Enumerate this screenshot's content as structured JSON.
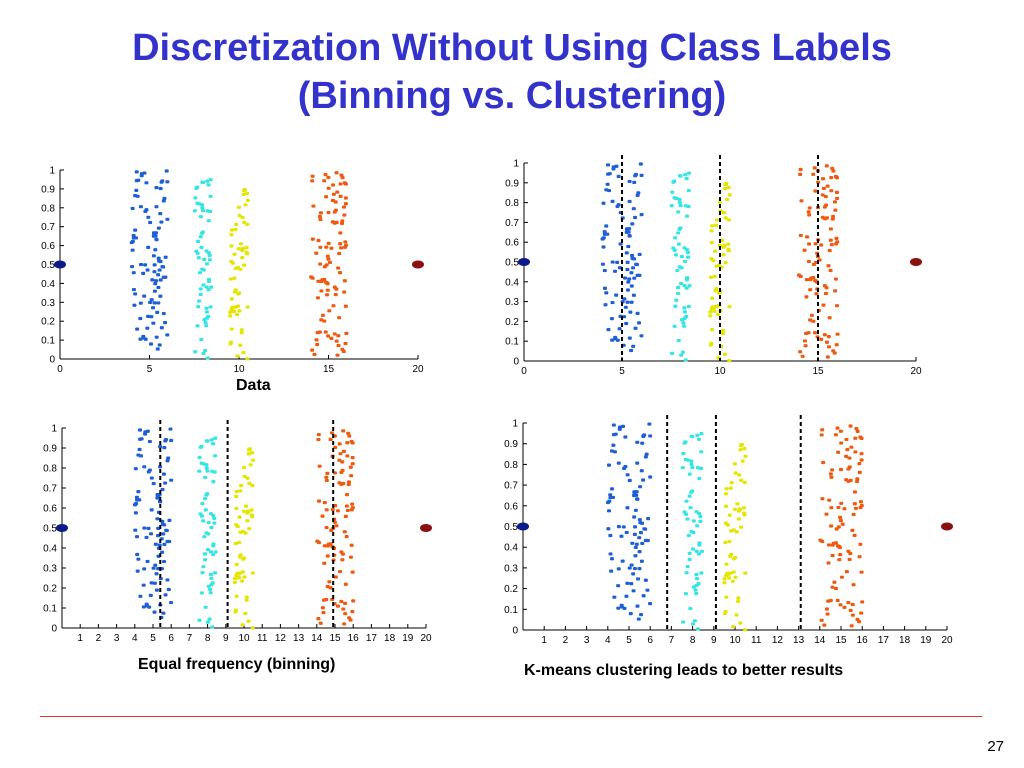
{
  "slide": {
    "title_line1": "Discretization Without Using Class Labels",
    "title_line2": "(Binning vs. Clustering)",
    "page_number": "27",
    "colors": {
      "title": "#3333cc",
      "rule": "#e03030",
      "outlier_left": "#0a1a8a",
      "outlier_right": "#8b1010"
    }
  },
  "captions": {
    "data": "Data",
    "equal_frequency": "Equal frequency (binning)",
    "kmeans": "K-means clustering leads to better results"
  },
  "chart_data": [
    {
      "type": "scatter",
      "title": "",
      "caption": "Data",
      "xlim": [
        0,
        20
      ],
      "ylim": [
        0,
        1
      ],
      "xticks": [
        "0",
        "5",
        "10",
        "15",
        "20"
      ],
      "yticks": [
        "0",
        "0.1",
        "0.2",
        "0.3",
        "0.4",
        "0.5",
        "0.6",
        "0.7",
        "0.8",
        "0.9",
        "1"
      ],
      "clusters": [
        {
          "color": "#1f5fd6",
          "x_range": [
            4,
            6
          ],
          "y_range": [
            0.05,
            1.0
          ],
          "count": 100
        },
        {
          "color": "#33e5e5",
          "x_range": [
            7.5,
            8.5
          ],
          "y_range": [
            0.0,
            0.97
          ],
          "count": 60
        },
        {
          "color": "#e5e500",
          "x_range": [
            9.5,
            10.5
          ],
          "y_range": [
            0.0,
            0.9
          ],
          "count": 60
        },
        {
          "color": "#ee5a10",
          "x_range": [
            14,
            16
          ],
          "y_range": [
            0.02,
            1.0
          ],
          "count": 100
        }
      ],
      "outliers": [
        {
          "x": 0,
          "y": 0.5,
          "color": "#0a1a8a"
        },
        {
          "x": 20,
          "y": 0.5,
          "color": "#8b1010"
        }
      ],
      "dividers": []
    },
    {
      "type": "scatter",
      "title": "",
      "caption": "",
      "xlim": [
        0,
        20
      ],
      "ylim": [
        0,
        1
      ],
      "xticks": [
        "0",
        "5",
        "10",
        "15",
        "20"
      ],
      "yticks": [
        "0",
        "0.1",
        "0.2",
        "0.3",
        "0.4",
        "0.5",
        "0.6",
        "0.7",
        "0.8",
        "0.9",
        "1"
      ],
      "clusters": [
        {
          "color": "#1f5fd6",
          "x_range": [
            4,
            6
          ],
          "y_range": [
            0.05,
            1.0
          ],
          "count": 100
        },
        {
          "color": "#33e5e5",
          "x_range": [
            7.5,
            8.5
          ],
          "y_range": [
            0.0,
            0.97
          ],
          "count": 60
        },
        {
          "color": "#e5e500",
          "x_range": [
            9.5,
            10.5
          ],
          "y_range": [
            0.0,
            0.9
          ],
          "count": 60
        },
        {
          "color": "#ee5a10",
          "x_range": [
            14,
            16
          ],
          "y_range": [
            0.02,
            1.0
          ],
          "count": 100
        }
      ],
      "outliers": [
        {
          "x": 0,
          "y": 0.5,
          "color": "#0a1a8a"
        },
        {
          "x": 20,
          "y": 0.5,
          "color": "#8b1010"
        }
      ],
      "dividers": [
        5,
        10,
        15
      ]
    },
    {
      "type": "scatter",
      "title": "",
      "caption": "Equal frequency (binning)",
      "xlim": [
        0,
        20
      ],
      "ylim": [
        0,
        1
      ],
      "xticks": [
        "1",
        "2",
        "3",
        "4",
        "5",
        "6",
        "7",
        "8",
        "9",
        "10",
        "11",
        "12",
        "13",
        "14",
        "15",
        "16",
        "17",
        "18",
        "19",
        "20"
      ],
      "yticks": [
        "0",
        "0.1",
        "0.2",
        "0.3",
        "0.4",
        "0.5",
        "0.6",
        "0.7",
        "0.8",
        "0.9",
        "1"
      ],
      "clusters": [
        {
          "color": "#1f5fd6",
          "x_range": [
            4,
            6
          ],
          "y_range": [
            0.05,
            1.0
          ],
          "count": 100
        },
        {
          "color": "#33e5e5",
          "x_range": [
            7.5,
            8.5
          ],
          "y_range": [
            0.0,
            0.97
          ],
          "count": 60
        },
        {
          "color": "#e5e500",
          "x_range": [
            9.5,
            10.5
          ],
          "y_range": [
            0.0,
            0.9
          ],
          "count": 60
        },
        {
          "color": "#ee5a10",
          "x_range": [
            14,
            16
          ],
          "y_range": [
            0.02,
            1.0
          ],
          "count": 100
        }
      ],
      "outliers": [
        {
          "x": 0,
          "y": 0.5,
          "color": "#0a1a8a"
        },
        {
          "x": 20,
          "y": 0.5,
          "color": "#8b1010"
        }
      ],
      "dividers": [
        5.4,
        9.1,
        14.9
      ]
    },
    {
      "type": "scatter",
      "title": "",
      "caption": "K-means clustering leads to better results",
      "xlim": [
        0,
        20
      ],
      "ylim": [
        0,
        1
      ],
      "xticks": [
        "1",
        "2",
        "3",
        "4",
        "5",
        "6",
        "7",
        "8",
        "9",
        "10",
        "11",
        "12",
        "13",
        "14",
        "15",
        "16",
        "17",
        "18",
        "19",
        "20"
      ],
      "yticks": [
        "0",
        "0.1",
        "0.2",
        "0.3",
        "0.4",
        "0.5",
        "0.6",
        "0.7",
        "0.8",
        "0.9",
        "1"
      ],
      "clusters": [
        {
          "color": "#1f5fd6",
          "x_range": [
            4,
            6
          ],
          "y_range": [
            0.05,
            1.0
          ],
          "count": 100
        },
        {
          "color": "#33e5e5",
          "x_range": [
            7.5,
            8.5
          ],
          "y_range": [
            0.0,
            0.97
          ],
          "count": 60
        },
        {
          "color": "#e5e500",
          "x_range": [
            9.5,
            10.5
          ],
          "y_range": [
            0.0,
            0.9
          ],
          "count": 60
        },
        {
          "color": "#ee5a10",
          "x_range": [
            14,
            16
          ],
          "y_range": [
            0.02,
            1.0
          ],
          "count": 100
        }
      ],
      "outliers": [
        {
          "x": 0,
          "y": 0.5,
          "color": "#0a1a8a"
        },
        {
          "x": 20,
          "y": 0.5,
          "color": "#8b1010"
        }
      ],
      "dividers": [
        6.8,
        9.1,
        13.1
      ]
    }
  ]
}
